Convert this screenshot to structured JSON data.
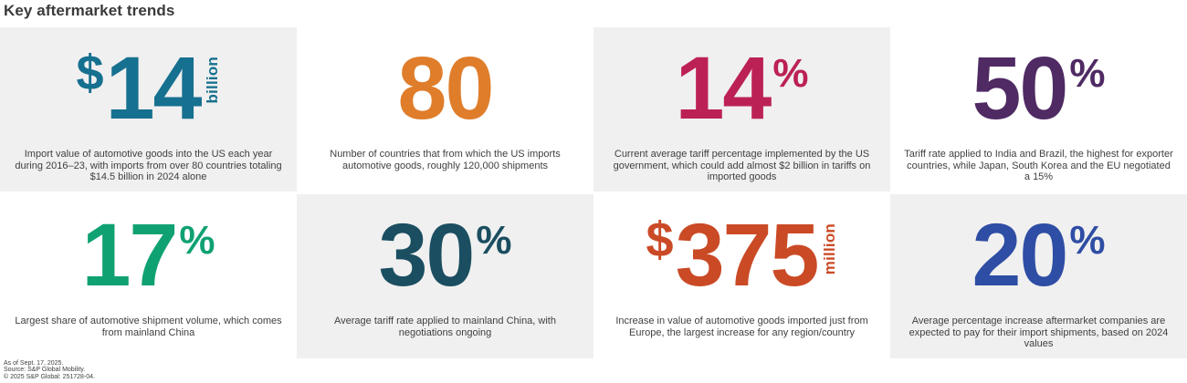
{
  "page_title": "Key aftermarket trends",
  "chart_data": {
    "type": "table",
    "title": "Key aftermarket trends",
    "stats": [
      {
        "prefix": "$",
        "value": "14",
        "unit_word": "billion",
        "color": "#16708F",
        "caption": "Import value of automotive goods into the US each year during 2016–23, with imports from over 80 countries totaling $14.5 billion in 2024 alone"
      },
      {
        "value": "80",
        "color": "#DF7D2B",
        "caption": "Number of countries that from which the US imports automotive goods, roughly 120,000 shipments"
      },
      {
        "value": "14",
        "percent": "%",
        "color": "#BC2155",
        "caption": "Current average tariff percentage implemented by the US government, which could add almost $2 billion in tariffs on imported goods"
      },
      {
        "value": "50",
        "percent": "%",
        "color": "#4F2A63",
        "caption": "Tariff rate applied to India and Brazil, the highest for exporter countries, while Japan, South Korea and the EU negotiated a 15%"
      },
      {
        "value": "17",
        "percent": "%",
        "color": "#10A173",
        "caption": "Largest share of automotive shipment volume, which comes from mainland China"
      },
      {
        "value": "30",
        "percent": "%",
        "color": "#1A4E60",
        "caption": "Average tariff rate applied to mainland China, with negotiations ongoing"
      },
      {
        "prefix": "$",
        "value": "375",
        "unit_word": "million",
        "color": "#CA4A26",
        "caption": "Increase in value of automotive goods imported just from Europe, the largest increase for any region/country"
      },
      {
        "value": "20",
        "percent": "%",
        "color": "#2E4DA4",
        "caption": "Average percentage increase aftermarket companies are expected to pay for their import shipments, based on 2024 values"
      }
    ]
  },
  "footer": {
    "lines": [
      "As of Sept. 17, 2025.",
      "Source: S&P Global Mobility.",
      "© 2025 S&P Global: 251728-04."
    ]
  },
  "colors": {
    "card_bg_gray": "#F0F0F0",
    "body_text": "#3F3F3F"
  }
}
